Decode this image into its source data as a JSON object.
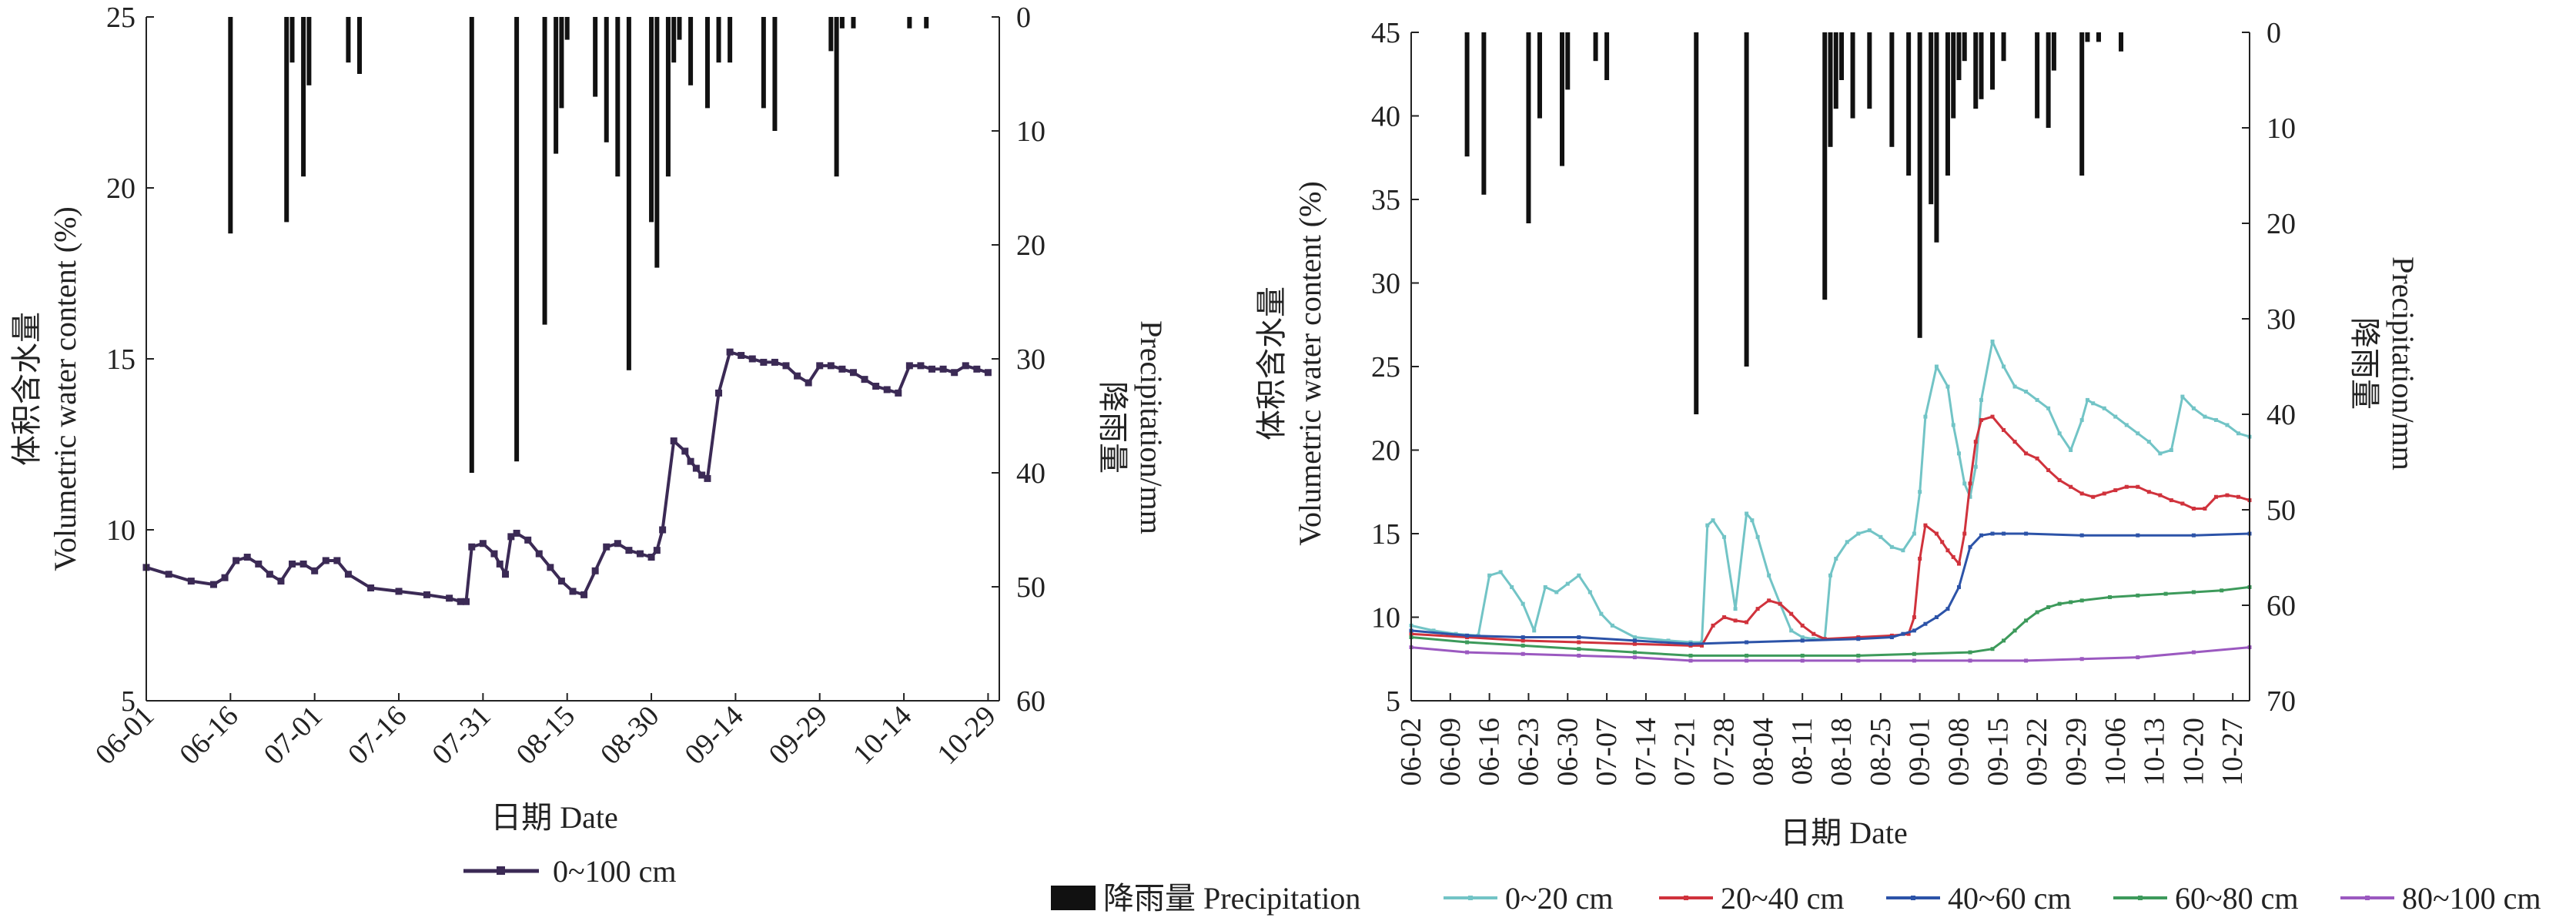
{
  "chart_data": [
    {
      "type": "line",
      "xlabel": "日期 Date",
      "ylabel_cn": "体积含水量",
      "ylabel_en": "Volumetric water content (%)",
      "y2label_cn": "降雨量",
      "y2label_en": "Precipitation/mm",
      "xtick_labels": [
        "06-01",
        "06-16",
        "07-01",
        "07-16",
        "07-31",
        "08-15",
        "08-30",
        "09-14",
        "09-29",
        "10-14",
        "10-29"
      ],
      "xlim_days": [
        0,
        152
      ],
      "ylim": [
        5,
        25
      ],
      "yticks": [
        5,
        10,
        15,
        20,
        25
      ],
      "y2lim": [
        60,
        0
      ],
      "y2ticks": [
        0,
        10,
        20,
        30,
        40,
        50,
        60
      ],
      "legend": [
        "0~100 cm"
      ],
      "colors": {
        "line": "#3b2a55",
        "bar": "#111111"
      },
      "precipitation": {
        "x": [
          15,
          25,
          26,
          28,
          29,
          36,
          38,
          58,
          66,
          71,
          73,
          74,
          75,
          80,
          82,
          84,
          86,
          90,
          91,
          93,
          94,
          95,
          97,
          100,
          102,
          104,
          110,
          112,
          122,
          123,
          124,
          126,
          136,
          139
        ],
        "values": [
          19,
          18,
          4,
          14,
          6,
          4,
          5,
          40,
          39,
          27,
          12,
          8,
          2,
          7,
          11,
          14,
          31,
          18,
          22,
          14,
          4,
          2,
          6,
          8,
          4,
          4,
          8,
          10,
          3,
          14,
          1,
          1,
          1,
          1
        ]
      },
      "series": [
        {
          "name": "0~100 cm",
          "x": [
            0,
            4,
            8,
            12,
            14,
            16,
            18,
            20,
            22,
            24,
            26,
            28,
            30,
            32,
            34,
            36,
            40,
            45,
            50,
            54,
            56,
            57,
            58,
            60,
            62,
            63,
            64,
            65,
            66,
            68,
            70,
            72,
            74,
            76,
            78,
            80,
            82,
            84,
            86,
            88,
            90,
            91,
            92,
            94,
            96,
            97,
            98,
            99,
            100,
            102,
            104,
            106,
            108,
            110,
            112,
            114,
            116,
            118,
            120,
            122,
            124,
            126,
            128,
            130,
            132,
            134,
            136,
            138,
            140,
            142,
            144,
            146,
            148,
            150
          ],
          "values": [
            8.9,
            8.7,
            8.5,
            8.4,
            8.6,
            9.1,
            9.2,
            9.0,
            8.7,
            8.5,
            9.0,
            9.0,
            8.8,
            9.1,
            9.1,
            8.7,
            8.3,
            8.2,
            8.1,
            8.0,
            7.9,
            7.9,
            9.5,
            9.6,
            9.3,
            9.0,
            8.7,
            9.8,
            9.9,
            9.7,
            9.3,
            8.9,
            8.5,
            8.2,
            8.1,
            8.8,
            9.5,
            9.6,
            9.4,
            9.3,
            9.2,
            9.4,
            10.0,
            12.6,
            12.3,
            12.0,
            11.8,
            11.6,
            11.5,
            14.0,
            15.2,
            15.1,
            15.0,
            14.9,
            14.9,
            14.8,
            14.5,
            14.3,
            14.8,
            14.8,
            14.7,
            14.6,
            14.4,
            14.2,
            14.1,
            14.0,
            14.8,
            14.8,
            14.7,
            14.7,
            14.6,
            14.8,
            14.7,
            14.6
          ]
        }
      ]
    },
    {
      "type": "line",
      "xlabel": "日期 Date",
      "ylabel_cn": "体积含水量",
      "ylabel_en": "Volumetric water content (%)",
      "y2label_cn": "降雨量",
      "y2label_en": "Precipitation/mm",
      "xtick_labels": [
        "06-02",
        "06-09",
        "06-16",
        "06-23",
        "06-30",
        "07-07",
        "07-14",
        "07-21",
        "07-28",
        "08-04",
        "08-11",
        "08-18",
        "08-25",
        "09-01",
        "09-08",
        "09-15",
        "09-22",
        "09-29",
        "10-06",
        "10-13",
        "10-20",
        "10-27"
      ],
      "xlim_days": [
        0,
        150
      ],
      "ylim": [
        5,
        45
      ],
      "yticks": [
        5,
        10,
        15,
        20,
        25,
        30,
        35,
        40,
        45
      ],
      "y2lim": [
        70,
        0
      ],
      "y2ticks": [
        0,
        10,
        20,
        30,
        40,
        50,
        60,
        70
      ],
      "legend": [
        "降雨量 Precipitation",
        "0~20 cm",
        "20~40 cm",
        "40~60 cm",
        "60~80 cm",
        "80~100 cm"
      ],
      "colors": {
        "bar": "#111111",
        "0~20 cm": "#72c4c6",
        "20~40 cm": "#d0323c",
        "40~60 cm": "#2c53a8",
        "60~80 cm": "#3d9a5b",
        "80~100 cm": "#9b59c0"
      },
      "precipitation": {
        "x": [
          10,
          13,
          21,
          23,
          27,
          28,
          33,
          35,
          51,
          60,
          74,
          75,
          76,
          77,
          79,
          82,
          86,
          89,
          91,
          93,
          94,
          96,
          97,
          98,
          99,
          101,
          102,
          104,
          106,
          112,
          114,
          115,
          120,
          121,
          123,
          127
        ],
        "values": [
          13,
          17,
          20,
          9,
          14,
          6,
          3,
          5,
          40,
          35,
          28,
          12,
          8,
          5,
          9,
          8,
          12,
          15,
          32,
          18,
          22,
          15,
          9,
          5,
          3,
          8,
          7,
          6,
          3,
          9,
          10,
          4,
          15,
          1,
          1,
          2
        ]
      },
      "series": [
        {
          "name": "0~20 cm",
          "x": [
            0,
            4,
            8,
            12,
            14,
            16,
            18,
            20,
            22,
            24,
            26,
            28,
            30,
            32,
            34,
            36,
            40,
            46,
            50,
            52,
            53,
            54,
            56,
            58,
            60,
            61,
            62,
            64,
            66,
            68,
            70,
            72,
            74,
            75,
            76,
            78,
            80,
            82,
            84,
            86,
            88,
            90,
            91,
            92,
            94,
            96,
            97,
            98,
            99,
            100,
            101,
            102,
            104,
            106,
            108,
            110,
            112,
            114,
            116,
            118,
            120,
            121,
            122,
            124,
            126,
            128,
            130,
            132,
            134,
            136,
            138,
            140,
            142,
            144,
            146,
            148,
            150
          ],
          "values": [
            9.5,
            9.2,
            9.0,
            8.9,
            12.5,
            12.7,
            11.8,
            10.8,
            9.2,
            11.8,
            11.5,
            12.0,
            12.5,
            11.5,
            10.2,
            9.5,
            8.8,
            8.6,
            8.5,
            8.5,
            15.5,
            15.8,
            14.8,
            10.5,
            16.2,
            15.8,
            14.8,
            12.5,
            10.8,
            9.2,
            8.8,
            8.7,
            8.7,
            12.5,
            13.5,
            14.5,
            15.0,
            15.2,
            14.8,
            14.2,
            14.0,
            15.0,
            17.5,
            22.0,
            25.0,
            23.8,
            21.5,
            19.8,
            18.0,
            17.2,
            19.0,
            23.0,
            26.5,
            25.0,
            23.8,
            23.5,
            23.0,
            22.5,
            21.0,
            20.0,
            21.8,
            23.0,
            22.8,
            22.5,
            22.0,
            21.5,
            21.0,
            20.5,
            19.8,
            20.0,
            23.2,
            22.5,
            22.0,
            21.8,
            21.5,
            21.0,
            20.8
          ]
        },
        {
          "name": "20~40 cm",
          "x": [
            0,
            10,
            20,
            30,
            40,
            50,
            52,
            54,
            56,
            58,
            60,
            62,
            64,
            66,
            68,
            70,
            72,
            74,
            80,
            86,
            89,
            90,
            91,
            92,
            94,
            95,
            96,
            97,
            98,
            99,
            100,
            101,
            102,
            104,
            106,
            108,
            110,
            112,
            114,
            116,
            118,
            120,
            122,
            124,
            126,
            128,
            130,
            132,
            134,
            136,
            138,
            140,
            142,
            144,
            146,
            148,
            150
          ],
          "values": [
            9.0,
            8.8,
            8.6,
            8.5,
            8.4,
            8.3,
            8.3,
            9.5,
            10.0,
            9.8,
            9.7,
            10.5,
            11.0,
            10.8,
            10.2,
            9.5,
            9.0,
            8.7,
            8.8,
            8.9,
            9.0,
            10.0,
            13.5,
            15.5,
            15.0,
            14.5,
            14.0,
            13.6,
            13.2,
            15.0,
            18.0,
            20.5,
            21.8,
            22.0,
            21.2,
            20.5,
            19.8,
            19.5,
            18.8,
            18.2,
            17.8,
            17.4,
            17.2,
            17.4,
            17.6,
            17.8,
            17.8,
            17.5,
            17.3,
            17.0,
            16.8,
            16.5,
            16.5,
            17.2,
            17.3,
            17.2,
            17.0
          ]
        },
        {
          "name": "40~60 cm",
          "x": [
            0,
            10,
            20,
            30,
            40,
            50,
            60,
            70,
            80,
            86,
            88,
            90,
            92,
            94,
            96,
            98,
            100,
            102,
            104,
            106,
            110,
            120,
            130,
            140,
            150
          ],
          "values": [
            9.2,
            8.9,
            8.8,
            8.8,
            8.6,
            8.4,
            8.5,
            8.6,
            8.7,
            8.8,
            9.0,
            9.2,
            9.6,
            10.0,
            10.5,
            11.8,
            14.2,
            14.9,
            15.0,
            15.0,
            15.0,
            14.9,
            14.9,
            14.9,
            15.0
          ]
        },
        {
          "name": "60~80 cm",
          "x": [
            0,
            10,
            20,
            30,
            40,
            50,
            60,
            70,
            80,
            90,
            100,
            104,
            106,
            108,
            110,
            112,
            114,
            116,
            118,
            120,
            125,
            130,
            135,
            140,
            145,
            150
          ],
          "values": [
            8.8,
            8.5,
            8.3,
            8.1,
            7.9,
            7.7,
            7.7,
            7.7,
            7.7,
            7.8,
            7.9,
            8.1,
            8.6,
            9.2,
            9.8,
            10.3,
            10.6,
            10.8,
            10.9,
            11.0,
            11.2,
            11.3,
            11.4,
            11.5,
            11.6,
            11.8
          ]
        },
        {
          "name": "80~100 cm",
          "x": [
            0,
            10,
            20,
            30,
            40,
            50,
            60,
            70,
            80,
            90,
            100,
            110,
            120,
            130,
            140,
            150
          ],
          "values": [
            8.2,
            7.9,
            7.8,
            7.7,
            7.6,
            7.4,
            7.4,
            7.4,
            7.4,
            7.4,
            7.4,
            7.4,
            7.5,
            7.6,
            7.9,
            8.2
          ]
        }
      ]
    }
  ]
}
